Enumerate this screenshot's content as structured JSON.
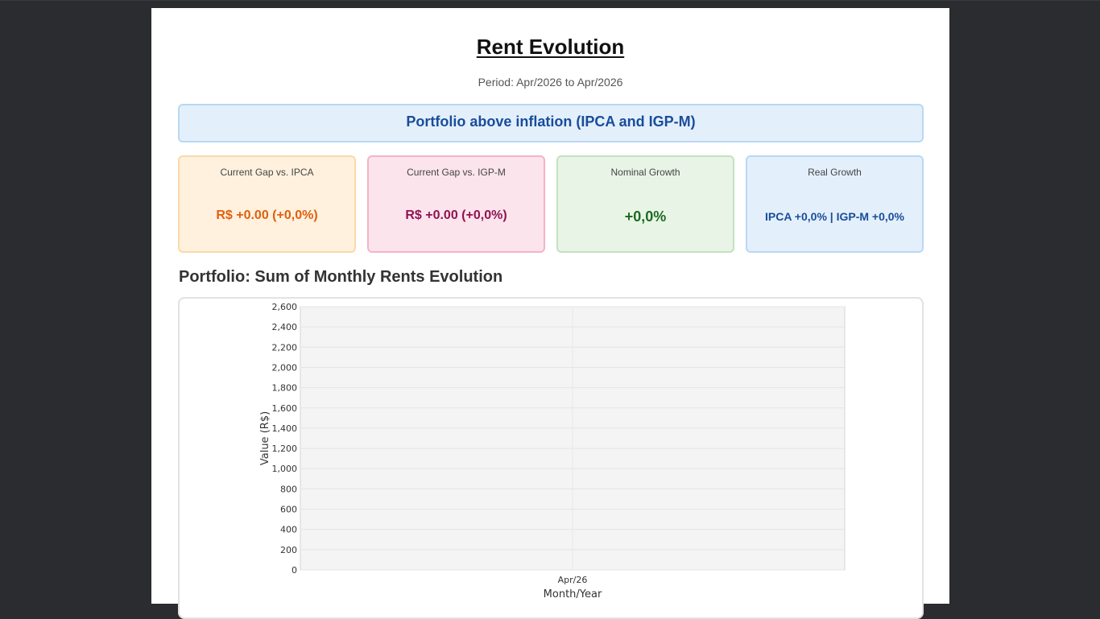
{
  "header": {
    "title": "Rent Evolution",
    "period": "Period: Apr/2026 to Apr/2026"
  },
  "banner": {
    "text": "Portfolio above inflation (IPCA and IGP-M)"
  },
  "cards": [
    {
      "label": "Current Gap vs. IPCA",
      "value": "R$ +0.00 (+0,0%)"
    },
    {
      "label": "Current Gap vs. IGP-M",
      "value": "R$ +0.00 (+0,0%)"
    },
    {
      "label": "Nominal Growth",
      "value": "+0,0%"
    },
    {
      "label": "Real Growth",
      "value": "IPCA +0,0% | IGP-M +0,0%"
    }
  ],
  "section": {
    "title": "Portfolio: Sum of Monthly Rents Evolution"
  },
  "chart_data": {
    "type": "line",
    "categories": [
      "Apr/26"
    ],
    "series": [],
    "xlabel": "Month/Year",
    "ylabel": "Value (R$)",
    "ylim": [
      0,
      2600
    ],
    "yticks": [
      0,
      200,
      400,
      600,
      800,
      1000,
      1200,
      1400,
      1600,
      1800,
      2000,
      2200,
      2400,
      2600
    ],
    "ytick_labels": [
      "0",
      "200",
      "400",
      "600",
      "800",
      "1,000",
      "1,200",
      "1,400",
      "1,600",
      "1,800",
      "2,000",
      "2,200",
      "2,400",
      "2,600"
    ],
    "grid": true
  },
  "colors": {
    "page_background": "#2b2c30",
    "plot_background": "#f4f4f4",
    "banner_text": "#1a4c9a",
    "ipca_accent": "#e0600e",
    "igpm_accent": "#8e1452",
    "nominal_accent": "#1e6a22"
  }
}
